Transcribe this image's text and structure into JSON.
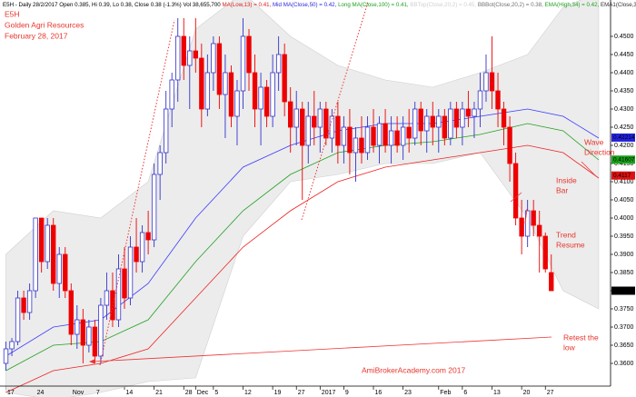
{
  "chart_data": {
    "type": "candlestick",
    "header": [
      {
        "text": "E5H - Daily 28/2/2017 Open 0.385, Hi 0.39, Lo 0.38, Close 0.38 (-1.3%) Vol 38,655,700 ",
        "color": "#000000"
      },
      {
        "text": "MA(Low,13) = 0.41, ",
        "color": "#e02020"
      },
      {
        "text": "Mid MA(Close,50) = 0.42, ",
        "color": "#2828e0"
      },
      {
        "text": "Long MA(Close,100) = 0.41, ",
        "color": "#20a020"
      },
      {
        "text": "BBTop(Close,20,2) = 0.45, ",
        "color": "#d0d0d0"
      },
      {
        "text": "BBBot(Close,20,2) = 0.38, ",
        "color": "#707070"
      },
      {
        "text": "EMA(High,34) = 0.42, ",
        "color": "#20a020"
      },
      {
        "text": "EMA1(Close,34) = 0",
        "color": "#303030"
      }
    ],
    "title_lines": [
      "E5H",
      "Golden Agri Resources",
      "February 28, 2017"
    ],
    "annotations": [
      [
        "Wave",
        "Direction"
      ],
      [
        "Inside",
        "Bar"
      ],
      [
        "Trend",
        "Resume"
      ],
      [
        "Retest the",
        "low"
      ]
    ],
    "watermark": "AmiBrokerAcademy.com  2017",
    "up_color": "#3333cc",
    "down_color": "#ee0000",
    "open": [
      0.36,
      0.364,
      0.366,
      0.378,
      0.374,
      0.38,
      0.4,
      0.388,
      0.398,
      0.382,
      0.39,
      0.38,
      0.368,
      0.372,
      0.365,
      0.37,
      0.362,
      0.376,
      0.38,
      0.372,
      0.386,
      0.378,
      0.392,
      0.388,
      0.396,
      0.394,
      0.412,
      0.418,
      0.43,
      0.438,
      0.45,
      0.442,
      0.446,
      0.444,
      0.43,
      0.44,
      0.448,
      0.434,
      0.44,
      0.428,
      0.435,
      0.45,
      0.44,
      0.43,
      0.436,
      0.428,
      0.44,
      0.445,
      0.432,
      0.425,
      0.43,
      0.42,
      0.428,
      0.425,
      0.43,
      0.422,
      0.428,
      0.42,
      0.425,
      0.418,
      0.422,
      0.418,
      0.425,
      0.42,
      0.426,
      0.42,
      0.424,
      0.42,
      0.425,
      0.422,
      0.43,
      0.424,
      0.428,
      0.425,
      0.428,
      0.422,
      0.43,
      0.425,
      0.43,
      0.428,
      0.43,
      0.435,
      0.44,
      0.435,
      0.43,
      0.425,
      0.415,
      0.4,
      0.395,
      0.402,
      0.398,
      0.395,
      0.385
    ],
    "high": [
      0.366,
      0.367,
      0.38,
      0.38,
      0.382,
      0.4,
      0.4,
      0.4,
      0.4,
      0.392,
      0.392,
      0.382,
      0.376,
      0.375,
      0.372,
      0.372,
      0.378,
      0.385,
      0.385,
      0.39,
      0.392,
      0.395,
      0.4,
      0.398,
      0.402,
      0.415,
      0.42,
      0.435,
      0.44,
      0.455,
      0.455,
      0.45,
      0.455,
      0.448,
      0.445,
      0.45,
      0.45,
      0.445,
      0.442,
      0.438,
      0.455,
      0.452,
      0.445,
      0.44,
      0.438,
      0.445,
      0.45,
      0.448,
      0.436,
      0.435,
      0.432,
      0.432,
      0.435,
      0.432,
      0.432,
      0.43,
      0.432,
      0.428,
      0.43,
      0.425,
      0.428,
      0.428,
      0.43,
      0.428,
      0.43,
      0.428,
      0.428,
      0.428,
      0.43,
      0.432,
      0.432,
      0.43,
      0.432,
      0.43,
      0.43,
      0.432,
      0.432,
      0.432,
      0.435,
      0.432,
      0.44,
      0.445,
      0.45,
      0.44,
      0.432,
      0.428,
      0.418,
      0.405,
      0.405,
      0.405,
      0.402,
      0.396,
      0.39
    ],
    "low": [
      0.358,
      0.362,
      0.365,
      0.372,
      0.372,
      0.378,
      0.385,
      0.386,
      0.38,
      0.378,
      0.378,
      0.365,
      0.364,
      0.36,
      0.363,
      0.36,
      0.36,
      0.372,
      0.37,
      0.37,
      0.375,
      0.376,
      0.385,
      0.385,
      0.39,
      0.392,
      0.405,
      0.415,
      0.425,
      0.432,
      0.438,
      0.43,
      0.44,
      0.425,
      0.428,
      0.435,
      0.43,
      0.422,
      0.425,
      0.42,
      0.43,
      0.435,
      0.425,
      0.42,
      0.425,
      0.425,
      0.435,
      0.428,
      0.418,
      0.42,
      0.405,
      0.415,
      0.42,
      0.418,
      0.42,
      0.418,
      0.415,
      0.415,
      0.412,
      0.41,
      0.415,
      0.416,
      0.418,
      0.415,
      0.418,
      0.415,
      0.418,
      0.416,
      0.418,
      0.42,
      0.42,
      0.418,
      0.42,
      0.418,
      0.42,
      0.42,
      0.422,
      0.42,
      0.425,
      0.422,
      0.425,
      0.432,
      0.43,
      0.425,
      0.42,
      0.41,
      0.398,
      0.39,
      0.392,
      0.395,
      0.385,
      0.385,
      0.38
    ],
    "close": [
      0.364,
      0.366,
      0.378,
      0.374,
      0.38,
      0.4,
      0.388,
      0.398,
      0.382,
      0.39,
      0.38,
      0.368,
      0.372,
      0.365,
      0.37,
      0.362,
      0.376,
      0.38,
      0.372,
      0.386,
      0.378,
      0.392,
      0.388,
      0.396,
      0.394,
      0.412,
      0.418,
      0.43,
      0.438,
      0.45,
      0.442,
      0.446,
      0.444,
      0.43,
      0.44,
      0.448,
      0.434,
      0.44,
      0.428,
      0.435,
      0.45,
      0.44,
      0.43,
      0.436,
      0.428,
      0.44,
      0.445,
      0.432,
      0.425,
      0.43,
      0.42,
      0.428,
      0.425,
      0.43,
      0.422,
      0.428,
      0.42,
      0.425,
      0.418,
      0.422,
      0.418,
      0.425,
      0.42,
      0.426,
      0.42,
      0.424,
      0.42,
      0.425,
      0.422,
      0.43,
      0.424,
      0.428,
      0.425,
      0.428,
      0.422,
      0.43,
      0.425,
      0.43,
      0.428,
      0.43,
      0.435,
      0.44,
      0.435,
      0.43,
      0.425,
      0.415,
      0.4,
      0.395,
      0.402,
      0.398,
      0.395,
      0.386,
      0.38
    ],
    "line_x": [
      0,
      8,
      16,
      24,
      32,
      40,
      48,
      56,
      64,
      72,
      80,
      88,
      94,
      100
    ],
    "lines": [
      {
        "color": "#3a3aff",
        "values": [
          0.362,
          0.37,
          0.372,
          0.382,
          0.4,
          0.414,
          0.42,
          0.424,
          0.426,
          0.426,
          0.428,
          0.43,
          0.428,
          0.422
        ]
      },
      {
        "color": "#22a022",
        "values": [
          0.358,
          0.365,
          0.366,
          0.372,
          0.388,
          0.402,
          0.412,
          0.418,
          0.42,
          0.421,
          0.423,
          0.426,
          0.424,
          0.416
        ]
      },
      {
        "color": "#ee2222",
        "values": [
          0.352,
          0.358,
          0.36,
          0.364,
          0.378,
          0.392,
          0.402,
          0.41,
          0.414,
          0.416,
          0.418,
          0.42,
          0.418,
          0.411
        ]
      }
    ],
    "band": {
      "color": "#ececec",
      "upper": [
        0.39,
        0.402,
        0.4,
        0.41,
        0.452,
        0.462,
        0.45,
        0.442,
        0.438,
        0.436,
        0.44,
        0.445,
        0.458,
        0.462
      ],
      "lower": [
        0.352,
        0.35,
        0.352,
        0.355,
        0.356,
        0.395,
        0.41,
        0.412,
        0.415,
        0.415,
        0.418,
        0.4,
        0.38,
        0.375
      ]
    },
    "last_tags": [
      {
        "value": 0.42214,
        "color": "#2222dd"
      },
      {
        "value": 0.41607,
        "color": "#18a018"
      },
      {
        "value": 0.4117,
        "color": "#dd1111"
      },
      {
        "value": 0.38,
        "color": "#000000"
      }
    ],
    "xlim": [
      -1,
      102
    ],
    "ylim": [
      0.35375,
      0.46
    ],
    "xticks": [
      {
        "value": 0,
        "label": "17"
      },
      {
        "value": 5,
        "label": "24"
      },
      {
        "value": 11,
        "label": "Nov"
      },
      {
        "value": 15,
        "label": "7"
      },
      {
        "value": 20,
        "label": "14"
      },
      {
        "value": 25,
        "label": "21"
      },
      {
        "value": 30,
        "label": "28"
      },
      {
        "value": 32,
        "label": "Dec"
      },
      {
        "value": 35,
        "label": "5"
      },
      {
        "value": 40,
        "label": "12"
      },
      {
        "value": 45,
        "label": "19"
      },
      {
        "value": 49,
        "label": "27"
      },
      {
        "value": 53,
        "label": "2017"
      },
      {
        "value": 57,
        "label": "9"
      },
      {
        "value": 62,
        "label": "16"
      },
      {
        "value": 67,
        "label": "23"
      },
      {
        "value": 73,
        "label": "Feb"
      },
      {
        "value": 77,
        "label": "6"
      },
      {
        "value": 82,
        "label": "13"
      },
      {
        "value": 87,
        "label": "20"
      },
      {
        "value": 91,
        "label": "27"
      }
    ],
    "yticks": [
      {
        "value": 0.36,
        "label": "0.3600"
      },
      {
        "value": 0.365,
        "label": "0.3650"
      },
      {
        "value": 0.37,
        "label": "0.3700"
      },
      {
        "value": 0.375,
        "label": "0.3750"
      },
      {
        "value": 0.38,
        "label": "0.3800"
      },
      {
        "value": 0.385,
        "label": "0.3850"
      },
      {
        "value": 0.39,
        "label": "0.3900"
      },
      {
        "value": 0.395,
        "label": "0.3950"
      },
      {
        "value": 0.4,
        "label": "0.4000"
      },
      {
        "value": 0.405,
        "label": "0.4050"
      },
      {
        "value": 0.41,
        "label": "0.4100"
      },
      {
        "value": 0.415,
        "label": "0.4150"
      },
      {
        "value": 0.42,
        "label": "0.4200"
      },
      {
        "value": 0.425,
        "label": "0.4250"
      },
      {
        "value": 0.43,
        "label": "0.4300"
      },
      {
        "value": 0.435,
        "label": "0.4350"
      },
      {
        "value": 0.44,
        "label": "0.4400"
      },
      {
        "value": 0.445,
        "label": "0.4450"
      },
      {
        "value": 0.45,
        "label": "0.4500"
      }
    ]
  }
}
